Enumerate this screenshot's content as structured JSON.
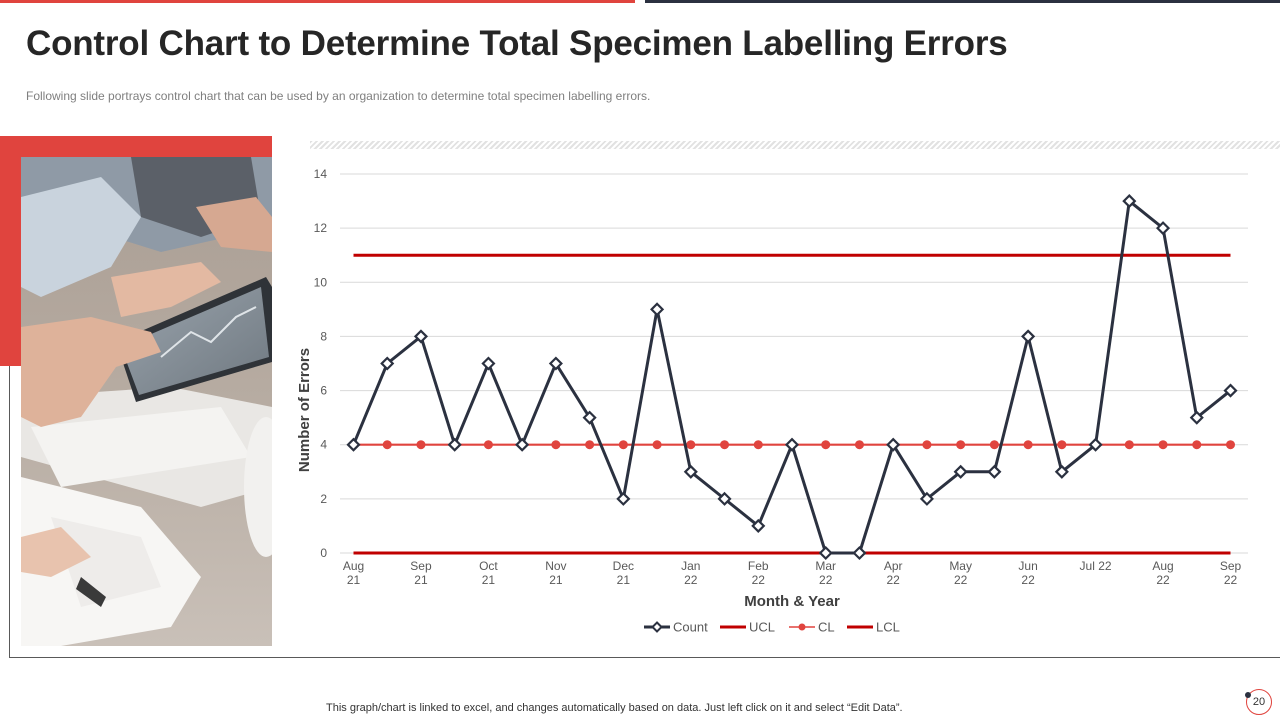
{
  "slide": {
    "title": "Control Chart to Determine Total Specimen Labelling Errors",
    "subtitle": "Following slide portrays control chart that can be used by an organization to determine total specimen labelling errors.",
    "footer_note": "This graph/chart is linked to excel,  and changes automatically based on data. Just left click on it and select “Edit Data”.",
    "page_number": "20",
    "accent_color": "#e0443e",
    "dark_color": "#2b3140"
  },
  "chart_data": {
    "type": "line",
    "xlabel": "Month & Year",
    "ylabel": "Number of Errors",
    "ylim": [
      0,
      14
    ],
    "yticks": [
      0,
      2,
      4,
      6,
      8,
      10,
      12,
      14
    ],
    "grid": true,
    "legend_position": "bottom",
    "categories": [
      "Aug 21",
      "",
      "Sep 21",
      "",
      "Oct 21",
      "",
      "Nov 21",
      "",
      "Dec 21",
      "",
      "Jan 22",
      "",
      "Feb 22",
      "",
      "Mar 22",
      "",
      "Apr 22",
      "",
      "May 22",
      "",
      "Jun 22",
      "",
      "Jul 22",
      "",
      "Aug 22",
      "",
      "Sep 22"
    ],
    "tick_labels": [
      {
        "i": 0,
        "lines": [
          "Aug",
          "21"
        ]
      },
      {
        "i": 2,
        "lines": [
          "Sep",
          "21"
        ]
      },
      {
        "i": 4,
        "lines": [
          "Oct",
          "21"
        ]
      },
      {
        "i": 6,
        "lines": [
          "Nov",
          "21"
        ]
      },
      {
        "i": 8,
        "lines": [
          "Dec",
          "21"
        ]
      },
      {
        "i": 10,
        "lines": [
          "Jan",
          "22"
        ]
      },
      {
        "i": 12,
        "lines": [
          "Feb",
          "22"
        ]
      },
      {
        "i": 14,
        "lines": [
          "Mar",
          "22"
        ]
      },
      {
        "i": 16,
        "lines": [
          "Apr",
          "22"
        ]
      },
      {
        "i": 18,
        "lines": [
          "May",
          "22"
        ]
      },
      {
        "i": 20,
        "lines": [
          "Jun",
          "22"
        ]
      },
      {
        "i": 22,
        "lines": [
          "Jul 22"
        ]
      },
      {
        "i": 24,
        "lines": [
          "Aug",
          "22"
        ]
      },
      {
        "i": 26,
        "lines": [
          "Sep",
          "22"
        ]
      }
    ],
    "series": [
      {
        "name": "Count",
        "color": "#2b3140",
        "marker": "diamond",
        "values": [
          4,
          7,
          8,
          4,
          7,
          4,
          7,
          5,
          2,
          9,
          3,
          2,
          1,
          4,
          0,
          0,
          4,
          2,
          3,
          3,
          8,
          3,
          4,
          13,
          12,
          5,
          6
        ]
      },
      {
        "name": "UCL",
        "color": "#c00000",
        "marker": "none",
        "values": [
          11,
          11,
          11,
          11,
          11,
          11,
          11,
          11,
          11,
          11,
          11,
          11,
          11,
          11,
          11,
          11,
          11,
          11,
          11,
          11,
          11,
          11,
          11,
          11,
          11,
          11,
          11
        ]
      },
      {
        "name": "CL",
        "color": "#e0443e",
        "marker": "circle",
        "values": [
          4,
          4,
          4,
          4,
          4,
          4,
          4,
          4,
          4,
          4,
          4,
          4,
          4,
          4,
          4,
          4,
          4,
          4,
          4,
          4,
          4,
          4,
          4,
          4,
          4,
          4,
          4
        ]
      },
      {
        "name": "LCL",
        "color": "#c00000",
        "marker": "none",
        "values": [
          0,
          0,
          0,
          0,
          0,
          0,
          0,
          0,
          0,
          0,
          0,
          0,
          0,
          0,
          0,
          0,
          0,
          0,
          0,
          0,
          0,
          0,
          0,
          0,
          0,
          0,
          0
        ]
      }
    ]
  }
}
